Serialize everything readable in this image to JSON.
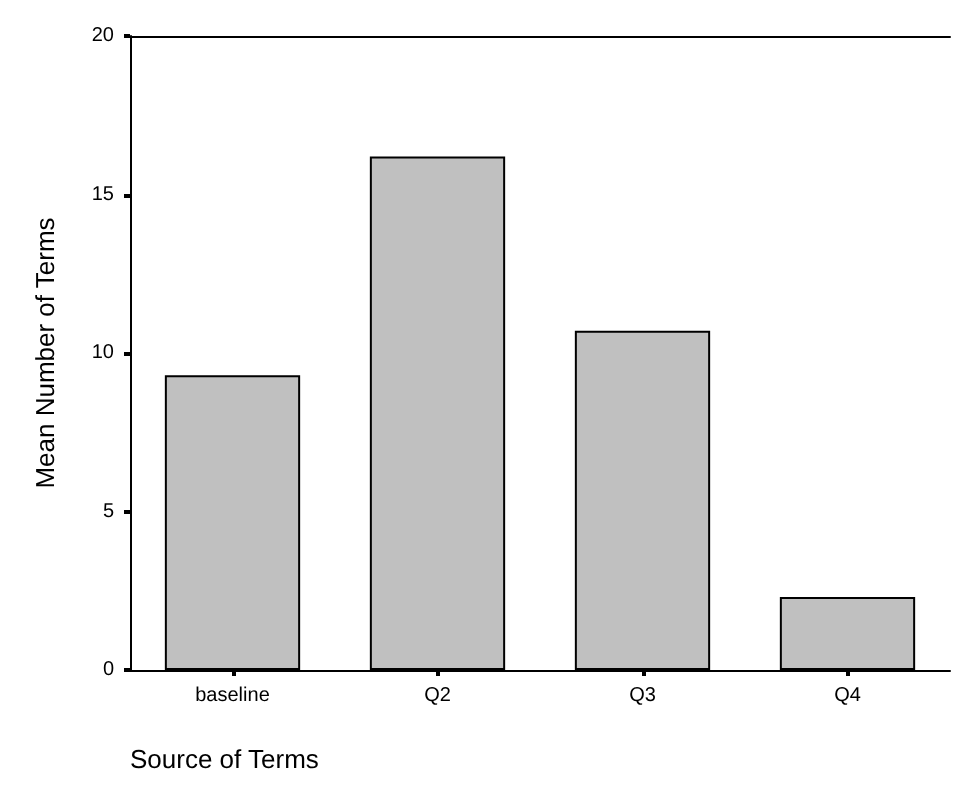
{
  "chart_data": {
    "type": "bar",
    "xlabel": "Source of Terms",
    "ylabel": "Mean Number of Terms",
    "categories": [
      "baseline",
      "Q2",
      "Q3",
      "Q4"
    ],
    "values": [
      9.3,
      16.2,
      10.7,
      2.3
    ],
    "color": "#c0c0c0",
    "ylim": [
      0,
      20
    ],
    "yticks": [
      0,
      5,
      10,
      15,
      20
    ],
    "grid": false
  }
}
